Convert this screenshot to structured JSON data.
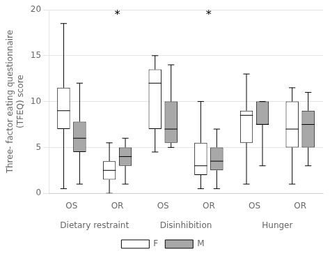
{
  "chart_data": {
    "type": "box",
    "ylabel": "Three- factor eating questionnaire\n(TFEQ) score",
    "categories": [
      "OS",
      "OR",
      "OS",
      "OR",
      "OS",
      "OR"
    ],
    "groups": [
      "Dietary restraint",
      "Disinhibition",
      "Hunger"
    ],
    "series": [
      {
        "name": "F",
        "color": "#ffffff",
        "values": [
          {
            "whislo": 0.5,
            "q1": 7.0,
            "med": 9.0,
            "q3": 11.5,
            "whishi": 18.5
          },
          {
            "whislo": 0.0,
            "q1": 1.5,
            "med": 2.5,
            "q3": 3.5,
            "whishi": 5.5
          },
          {
            "whislo": 4.5,
            "q1": 7.0,
            "med": 12.0,
            "q3": 13.5,
            "whishi": 15.0
          },
          {
            "whislo": 0.5,
            "q1": 2.0,
            "med": 3.0,
            "q3": 5.5,
            "whishi": 10.0
          },
          {
            "whislo": 1.0,
            "q1": 5.5,
            "med": 8.5,
            "q3": 9.0,
            "whishi": 13.0
          },
          {
            "whislo": 1.0,
            "q1": 5.0,
            "med": 7.0,
            "q3": 10.0,
            "whishi": 11.5
          }
        ]
      },
      {
        "name": "M",
        "color": "#a8a8a8",
        "values": [
          {
            "whislo": 1.0,
            "q1": 4.5,
            "med": 6.0,
            "q3": 7.8,
            "whishi": 12.0
          },
          {
            "whislo": 1.0,
            "q1": 3.0,
            "med": 4.0,
            "q3": 5.0,
            "whishi": 6.0
          },
          {
            "whislo": 5.0,
            "q1": 5.5,
            "med": 7.0,
            "q3": 10.0,
            "whishi": 14.0
          },
          {
            "whislo": 0.5,
            "q1": 2.5,
            "med": 3.5,
            "q3": 5.0,
            "whishi": 7.0
          },
          {
            "whislo": 3.0,
            "q1": 7.5,
            "med": 7.5,
            "q3": 10.0,
            "whishi": 10.0
          },
          {
            "whislo": 3.0,
            "q1": 5.0,
            "med": 7.5,
            "q3": 9.0,
            "whishi": 11.0
          }
        ]
      }
    ],
    "annotations": [
      {
        "text": "*",
        "group": "Dietary restraint",
        "category": "OR",
        "y": 18.8
      },
      {
        "text": "*",
        "group": "Disinhibition",
        "category": "OR",
        "y": 18.8
      }
    ],
    "ylim": [
      0,
      20
    ],
    "yticks": [
      0,
      5,
      10,
      15,
      20
    ],
    "grid": true,
    "legend": "bottom"
  }
}
